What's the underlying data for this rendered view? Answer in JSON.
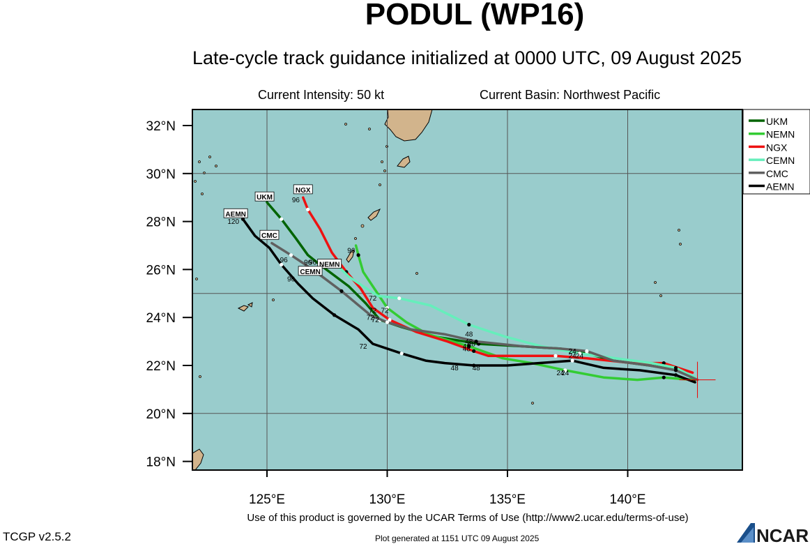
{
  "header": {
    "title": "PODUL (WP16)",
    "subtitle": "Late-cycle track guidance initialized at 0000 UTC, 09 August 2025",
    "intensity": "Current Intensity: 50 kt",
    "basin": "Current Basin: Northwest Pacific"
  },
  "footer": {
    "terms": "Use of this product is governed by the UCAR Terms of Use (http://www2.ucar.edu/terms-of-use)",
    "version": "TCGP v2.5.2",
    "generated": "Plot generated at 1151 UTC   09 August 2025",
    "logo_text": "NCAR"
  },
  "map": {
    "lon_range": [
      122,
      145
    ],
    "lat_range": [
      17.5,
      32.7
    ],
    "x_ticks": [
      "125°E",
      "130°E",
      "135°E",
      "140°E"
    ],
    "x_tick_values": [
      125,
      130,
      135,
      140
    ],
    "y_ticks": [
      "18°N",
      "20°N",
      "22°N",
      "24°N",
      "26°N",
      "28°N",
      "30°N",
      "32°N"
    ],
    "y_tick_values": [
      18,
      20,
      22,
      24,
      26,
      28,
      30,
      32
    ],
    "ocean_color": "#99cccc",
    "land_color": "#d2b48c",
    "grid": true,
    "current_position": {
      "lon": 142.9,
      "lat": 21.4
    },
    "legend_placement": "top-right"
  },
  "chart_data": {
    "type": "line",
    "x_axis": "longitude (°E)",
    "y_axis": "latitude (°N)",
    "series": [
      {
        "name": "UKM",
        "color": "#006400",
        "points": [
          [
            142.8,
            21.4
          ],
          [
            142.2,
            21.8
          ],
          [
            140.9,
            22.0
          ],
          [
            139.4,
            22.2
          ],
          [
            138.3,
            22.5
          ],
          [
            137.2,
            22.7
          ],
          [
            135.6,
            22.8
          ],
          [
            133.8,
            22.9
          ],
          [
            132.0,
            23.2
          ],
          [
            130.6,
            23.6
          ],
          [
            129.7,
            23.9
          ],
          [
            129.1,
            24.6
          ],
          [
            128.4,
            25.3
          ],
          [
            127.2,
            26.2
          ],
          [
            126.7,
            26.6
          ],
          [
            126.2,
            27.3
          ],
          [
            125.6,
            28.1
          ],
          [
            125.0,
            28.8
          ]
        ],
        "labels": [
          {
            "t": "24",
            "lon": 137.7,
            "lat": 22.5
          },
          {
            "t": "48",
            "lon": 133.3,
            "lat": 22.7
          },
          {
            "t": "72",
            "lon": 129.3,
            "lat": 23.9
          },
          {
            "t": "96",
            "lon": 126.9,
            "lat": 26.2
          }
        ],
        "tag": {
          "t": "UKM",
          "lon": 124.9,
          "lat": 29.0
        }
      },
      {
        "name": "NEMN",
        "color": "#33cc33",
        "points": [
          [
            142.7,
            21.4
          ],
          [
            141.5,
            21.5
          ],
          [
            140.4,
            21.4
          ],
          [
            139.0,
            21.5
          ],
          [
            137.4,
            21.8
          ],
          [
            136.0,
            22.1
          ],
          [
            134.8,
            22.3
          ],
          [
            133.4,
            22.8
          ],
          [
            131.7,
            23.3
          ],
          [
            130.8,
            23.8
          ],
          [
            130.0,
            24.4
          ],
          [
            129.4,
            25.3
          ],
          [
            129.0,
            25.9
          ],
          [
            128.8,
            26.6
          ],
          [
            128.7,
            27.0
          ]
        ],
        "labels": [
          {
            "t": "24",
            "lon": 137.2,
            "lat": 21.6
          },
          {
            "t": "48",
            "lon": 133.3,
            "lat": 22.6
          },
          {
            "t": "72",
            "lon": 129.4,
            "lat": 24.2
          },
          {
            "t": "96",
            "lon": 128.5,
            "lat": 26.7
          }
        ],
        "tag": {
          "t": "NEMN",
          "lon": 127.6,
          "lat": 26.2
        }
      },
      {
        "name": "NGX",
        "color": "#ee1111",
        "points": [
          [
            142.7,
            21.7
          ],
          [
            141.5,
            22.1
          ],
          [
            140.2,
            22.1
          ],
          [
            138.3,
            22.3
          ],
          [
            137.0,
            22.4
          ],
          [
            135.5,
            22.4
          ],
          [
            134.2,
            22.4
          ],
          [
            133.6,
            22.6
          ],
          [
            132.5,
            23.0
          ],
          [
            131.2,
            23.4
          ],
          [
            130.1,
            23.9
          ],
          [
            129.4,
            24.4
          ],
          [
            128.9,
            25.2
          ],
          [
            128.3,
            25.9
          ],
          [
            127.7,
            26.7
          ],
          [
            127.2,
            27.7
          ],
          [
            126.7,
            28.5
          ],
          [
            126.5,
            29.0
          ]
        ],
        "labels": [
          {
            "t": "24",
            "lon": 138.0,
            "lat": 22.3
          },
          {
            "t": "48",
            "lon": 133.5,
            "lat": 22.8
          },
          {
            "t": "72",
            "lon": 129.9,
            "lat": 24.2
          },
          {
            "t": "96",
            "lon": 126.2,
            "lat": 28.8
          }
        ],
        "tag": {
          "t": "NGX",
          "lon": 126.5,
          "lat": 29.3
        }
      },
      {
        "name": "CEMN",
        "color": "#66eebb",
        "points": [
          [
            142.8,
            21.5
          ],
          [
            142.0,
            21.9
          ],
          [
            141.0,
            22.1
          ],
          [
            139.5,
            22.3
          ],
          [
            138.0,
            22.5
          ],
          [
            136.4,
            22.8
          ],
          [
            134.9,
            23.2
          ],
          [
            133.4,
            23.7
          ],
          [
            132.4,
            24.2
          ],
          [
            131.8,
            24.5
          ],
          [
            130.5,
            24.8
          ],
          [
            129.6,
            24.9
          ],
          [
            128.4,
            25.7
          ],
          [
            127.8,
            26.3
          ],
          [
            127.4,
            26.1
          ]
        ],
        "labels": [
          {
            "t": "24",
            "lon": 137.7,
            "lat": 22.3
          },
          {
            "t": "48",
            "lon": 133.4,
            "lat": 23.2
          },
          {
            "t": "72",
            "lon": 129.4,
            "lat": 24.7
          },
          {
            "t": "96",
            "lon": 126.7,
            "lat": 26.2
          }
        ],
        "tag": {
          "t": "CEMN",
          "lon": 126.8,
          "lat": 25.9
        }
      },
      {
        "name": "CMC",
        "color": "#606060",
        "points": [
          [
            142.9,
            21.4
          ],
          [
            142.0,
            21.8
          ],
          [
            140.9,
            22.0
          ],
          [
            139.4,
            22.2
          ],
          [
            138.3,
            22.6
          ],
          [
            137.2,
            22.7
          ],
          [
            135.6,
            22.8
          ],
          [
            133.7,
            23.0
          ],
          [
            132.4,
            23.3
          ],
          [
            131.0,
            23.5
          ],
          [
            130.0,
            23.8
          ],
          [
            129.3,
            24.1
          ],
          [
            128.7,
            24.6
          ],
          [
            128.1,
            25.1
          ],
          [
            127.3,
            25.7
          ],
          [
            126.6,
            26.2
          ],
          [
            126.0,
            26.6
          ],
          [
            125.2,
            27.1
          ]
        ],
        "labels": [
          {
            "t": "24",
            "lon": 137.7,
            "lat": 22.5
          },
          {
            "t": "48",
            "lon": 133.4,
            "lat": 22.9
          },
          {
            "t": "72",
            "lon": 129.5,
            "lat": 23.8
          },
          {
            "t": "96",
            "lon": 125.7,
            "lat": 26.3
          }
        ],
        "tag": {
          "t": "CMC",
          "lon": 125.1,
          "lat": 27.4
        }
      },
      {
        "name": "AEMN",
        "color": "#000000",
        "points": [
          [
            142.8,
            21.3
          ],
          [
            142.0,
            21.6
          ],
          [
            140.5,
            21.8
          ],
          [
            139.0,
            21.9
          ],
          [
            137.7,
            22.2
          ],
          [
            136.3,
            22.1
          ],
          [
            135.0,
            22.0
          ],
          [
            133.6,
            22.0
          ],
          [
            132.4,
            22.1
          ],
          [
            131.6,
            22.2
          ],
          [
            130.6,
            22.5
          ],
          [
            129.4,
            22.9
          ],
          [
            128.8,
            23.5
          ],
          [
            127.8,
            24.1
          ],
          [
            126.9,
            24.8
          ],
          [
            126.3,
            25.4
          ],
          [
            125.6,
            26.2
          ],
          [
            125.1,
            26.9
          ],
          [
            124.5,
            27.4
          ],
          [
            124.0,
            28.1
          ]
        ],
        "labels": [
          {
            "t": "24",
            "lon": 137.4,
            "lat": 21.6
          },
          {
            "t": "48",
            "lon": 133.7,
            "lat": 21.8
          },
          {
            "t": "48",
            "lon": 132.8,
            "lat": 21.8
          },
          {
            "t": "72",
            "lon": 129.0,
            "lat": 22.7
          },
          {
            "t": "96",
            "lon": 126.0,
            "lat": 25.5
          },
          {
            "t": "120",
            "lon": 123.6,
            "lat": 27.9
          }
        ],
        "tag": {
          "t": "AEMN",
          "lon": 123.7,
          "lat": 28.3
        }
      }
    ]
  }
}
